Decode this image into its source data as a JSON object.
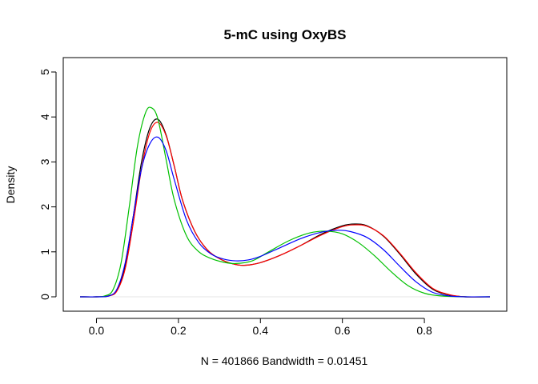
{
  "chart_data": {
    "type": "line",
    "title": "5-mC using OxyBS",
    "xlabel": "N = 401866   Bandwidth = 0.01451",
    "ylabel": "Density",
    "xlim": [
      -0.04,
      0.96
    ],
    "ylim": [
      0,
      5
    ],
    "xticks": [
      "0.0",
      "0.2",
      "0.4",
      "0.6",
      "0.8"
    ],
    "xtick_values": [
      0.0,
      0.2,
      0.4,
      0.6,
      0.8
    ],
    "yticks": [
      "0",
      "1",
      "2",
      "3",
      "4",
      "5"
    ],
    "ytick_values": [
      0,
      1,
      2,
      3,
      4,
      5
    ],
    "grid": false,
    "baseline": {
      "y": 0,
      "color": "#e6e6e6"
    },
    "series": [
      {
        "color": "#000000",
        "x": [
          -0.04,
          0.0,
          0.03,
          0.05,
          0.07,
          0.09,
          0.11,
          0.13,
          0.15,
          0.17,
          0.19,
          0.21,
          0.24,
          0.27,
          0.3,
          0.33,
          0.36,
          0.4,
          0.45,
          0.5,
          0.55,
          0.6,
          0.63,
          0.66,
          0.7,
          0.74,
          0.78,
          0.82,
          0.86,
          0.9,
          0.96
        ],
        "y": [
          0.0,
          0.0,
          0.02,
          0.15,
          0.7,
          1.8,
          3.0,
          3.75,
          3.95,
          3.6,
          2.9,
          2.15,
          1.45,
          1.05,
          0.85,
          0.74,
          0.7,
          0.76,
          0.93,
          1.15,
          1.4,
          1.58,
          1.62,
          1.58,
          1.35,
          0.95,
          0.5,
          0.17,
          0.04,
          0.0,
          0.0
        ]
      },
      {
        "color": "#ff0000",
        "x": [
          -0.04,
          0.0,
          0.03,
          0.05,
          0.07,
          0.09,
          0.11,
          0.13,
          0.15,
          0.17,
          0.19,
          0.21,
          0.24,
          0.27,
          0.3,
          0.33,
          0.36,
          0.4,
          0.45,
          0.5,
          0.55,
          0.6,
          0.63,
          0.66,
          0.7,
          0.74,
          0.78,
          0.82,
          0.86,
          0.9,
          0.96
        ],
        "y": [
          0.0,
          0.0,
          0.02,
          0.13,
          0.62,
          1.65,
          2.85,
          3.65,
          3.88,
          3.58,
          2.9,
          2.15,
          1.45,
          1.05,
          0.85,
          0.74,
          0.7,
          0.76,
          0.93,
          1.15,
          1.38,
          1.56,
          1.6,
          1.57,
          1.36,
          0.97,
          0.53,
          0.19,
          0.05,
          0.0,
          0.0
        ]
      },
      {
        "color": "#00c000",
        "x": [
          -0.04,
          0.0,
          0.02,
          0.04,
          0.06,
          0.08,
          0.1,
          0.12,
          0.135,
          0.15,
          0.17,
          0.19,
          0.22,
          0.25,
          0.28,
          0.31,
          0.34,
          0.38,
          0.42,
          0.47,
          0.52,
          0.56,
          0.6,
          0.64,
          0.68,
          0.72,
          0.76,
          0.8,
          0.84,
          0.9,
          0.96
        ],
        "y": [
          0.0,
          0.0,
          0.02,
          0.15,
          0.75,
          2.0,
          3.35,
          4.1,
          4.2,
          3.95,
          3.05,
          2.15,
          1.35,
          1.0,
          0.85,
          0.77,
          0.74,
          0.8,
          1.0,
          1.25,
          1.42,
          1.46,
          1.4,
          1.2,
          0.9,
          0.55,
          0.25,
          0.08,
          0.02,
          0.0,
          0.0
        ]
      },
      {
        "color": "#0000ff",
        "x": [
          -0.04,
          0.0,
          0.03,
          0.05,
          0.07,
          0.09,
          0.11,
          0.13,
          0.15,
          0.17,
          0.19,
          0.22,
          0.25,
          0.28,
          0.31,
          0.34,
          0.37,
          0.4,
          0.45,
          0.5,
          0.55,
          0.59,
          0.62,
          0.66,
          0.7,
          0.74,
          0.78,
          0.82,
          0.86,
          0.9,
          0.96
        ],
        "y": [
          0.0,
          0.0,
          0.02,
          0.17,
          0.75,
          1.8,
          2.85,
          3.4,
          3.55,
          3.25,
          2.6,
          1.7,
          1.2,
          0.95,
          0.84,
          0.8,
          0.82,
          0.9,
          1.1,
          1.3,
          1.44,
          1.48,
          1.45,
          1.32,
          1.05,
          0.68,
          0.33,
          0.1,
          0.02,
          0.0,
          0.0
        ]
      }
    ]
  }
}
